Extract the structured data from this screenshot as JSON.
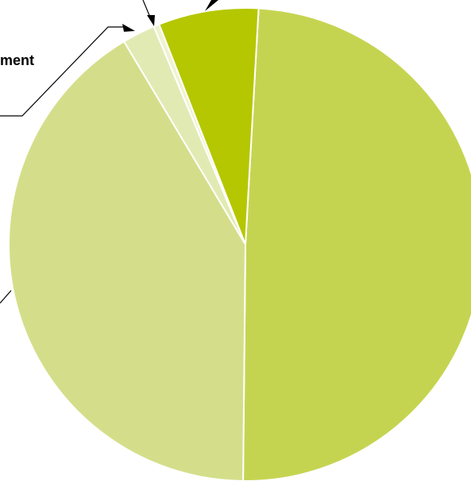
{
  "chart_data": {
    "type": "pie",
    "title": "",
    "start_angle_deg": 3.2,
    "direction": "clockwise",
    "values": [
      50.5,
      42.3,
      2.3,
      0.4,
      7.0
    ],
    "colors": [
      "#c5d450",
      "#d4de8a",
      "#e2eab4",
      "#eef3d0",
      "#b5c700"
    ],
    "labels": [
      {
        "text": "",
        "slice_index": 0
      },
      {
        "text": "",
        "slice_index": 1
      },
      {
        "text": "ment",
        "slice_index": 2
      },
      {
        "text": "",
        "slice_index": 3
      },
      {
        "text": "",
        "slice_index": 4
      }
    ]
  }
}
